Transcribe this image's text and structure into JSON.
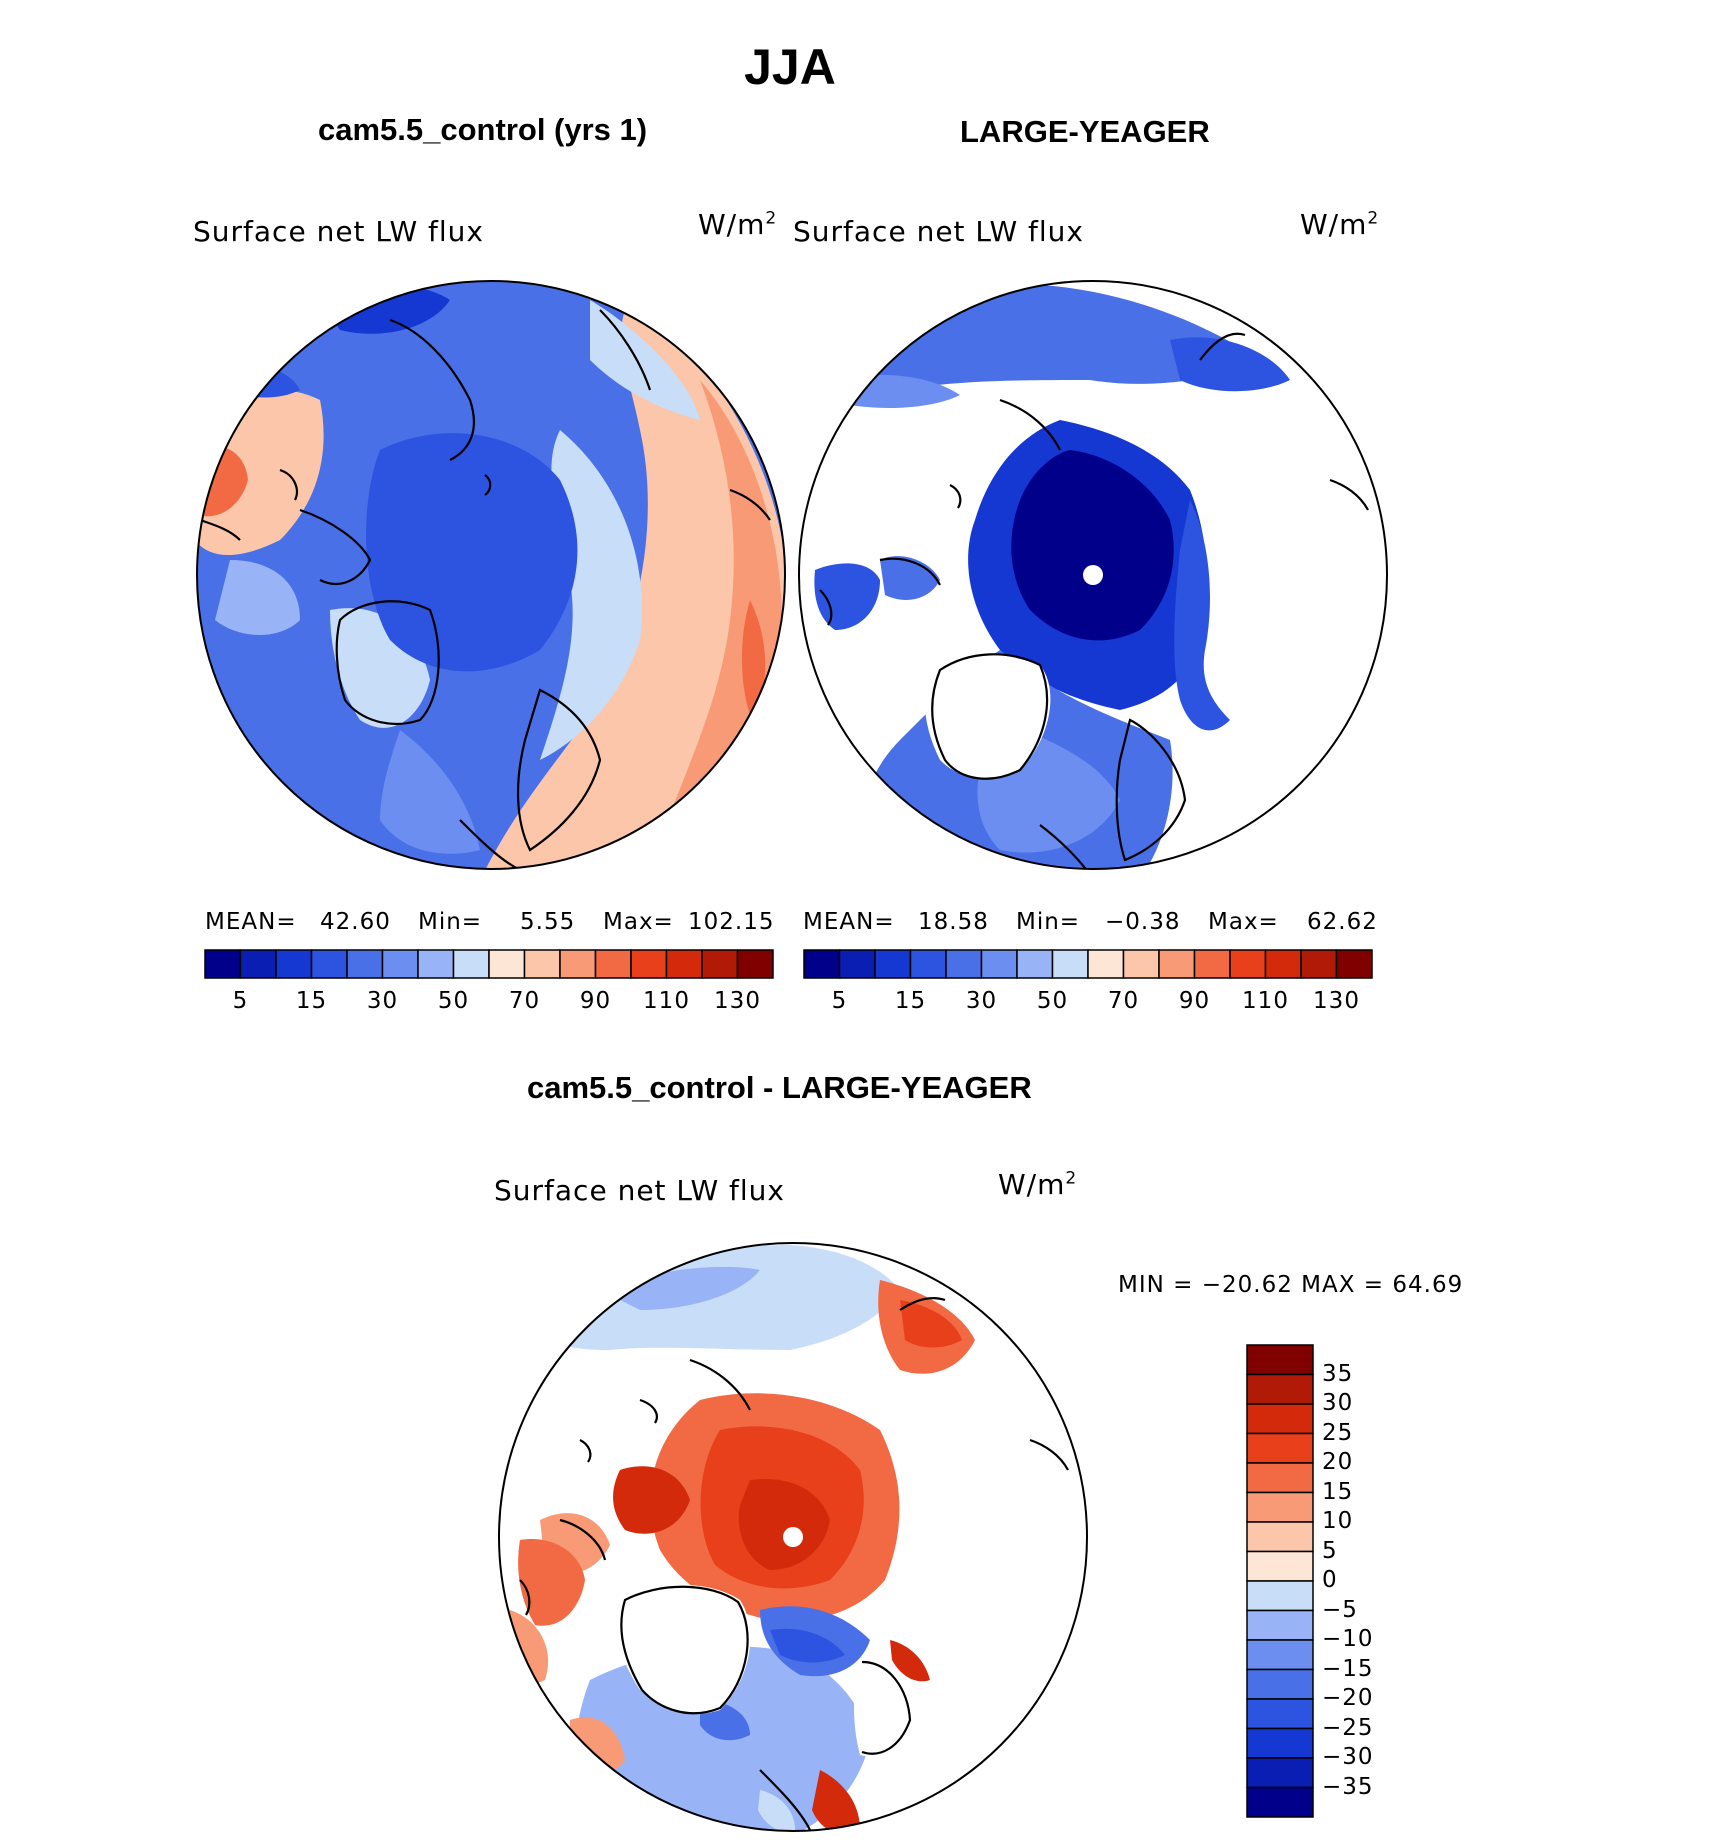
{
  "title": "JJA",
  "panels": [
    {
      "id": "control",
      "title": "cam5.5_control (yrs 1)",
      "variable": "Surface net LW flux",
      "units_base": "W/m",
      "units_exp": "2",
      "stats": {
        "mean_label": "MEAN=",
        "mean": "42.60",
        "min_label": "Min=",
        "min": "5.55",
        "max_label": "Max=",
        "max": "102.15"
      }
    },
    {
      "id": "obs",
      "title": "LARGE-YEAGER",
      "variable": "Surface net LW flux",
      "units_base": "W/m",
      "units_exp": "2",
      "stats": {
        "mean_label": "MEAN=",
        "mean": "18.58",
        "min_label": "Min=",
        "min": "−0.38",
        "max_label": "Max=",
        "max": "62.62"
      }
    },
    {
      "id": "diff",
      "title": "cam5.5_control - LARGE-YEAGER",
      "variable": "Surface net LW flux",
      "units_base": "W/m",
      "units_exp": "2",
      "minmax": "MIN = −20.62  MAX =   64.69"
    }
  ],
  "chart_data": [
    {
      "type": "heatmap",
      "projection": "north polar stereographic",
      "title": "cam5.5_control (yrs 1)",
      "variable": "Surface net LW flux",
      "units": "W/m2",
      "mean": 42.6,
      "min": 5.55,
      "max": 102.15,
      "colorbar_ticks": [
        "5",
        "15",
        "30",
        "50",
        "70",
        "90",
        "110",
        "130"
      ],
      "colorbar_levels": [
        0,
        5,
        10,
        15,
        20,
        30,
        40,
        50,
        60,
        70,
        80,
        90,
        100,
        110,
        120,
        130,
        140
      ],
      "colorbar_colors": [
        "#00008b",
        "#0a1eb4",
        "#1638d2",
        "#2c54e0",
        "#4a70e8",
        "#6c8ef0",
        "#98b4f6",
        "#c8def8",
        "#fde6d6",
        "#fbc6aa",
        "#f89a76",
        "#f26a44",
        "#e8401a",
        "#d42a0c",
        "#b01a06",
        "#800000"
      ]
    },
    {
      "type": "heatmap",
      "projection": "north polar stereographic",
      "title": "LARGE-YEAGER",
      "variable": "Surface net LW flux",
      "units": "W/m2",
      "mean": 18.58,
      "min": -0.38,
      "max": 62.62,
      "colorbar_ticks": [
        "5",
        "15",
        "30",
        "50",
        "70",
        "90",
        "110",
        "130"
      ],
      "colorbar_levels": [
        0,
        5,
        10,
        15,
        20,
        30,
        40,
        50,
        60,
        70,
        80,
        90,
        100,
        110,
        120,
        130,
        140
      ],
      "colorbar_colors": [
        "#00008b",
        "#0a1eb4",
        "#1638d2",
        "#2c54e0",
        "#4a70e8",
        "#6c8ef0",
        "#98b4f6",
        "#c8def8",
        "#fde6d6",
        "#fbc6aa",
        "#f89a76",
        "#f26a44",
        "#e8401a",
        "#d42a0c",
        "#b01a06",
        "#800000"
      ]
    },
    {
      "type": "heatmap",
      "projection": "north polar stereographic",
      "title": "cam5.5_control - LARGE-YEAGER",
      "variable": "Surface net LW flux",
      "units": "W/m2",
      "min": -20.62,
      "max": 64.69,
      "colorbar_ticks": [
        "35",
        "30",
        "25",
        "20",
        "15",
        "10",
        "5",
        "0",
        "−5",
        "−10",
        "−15",
        "−20",
        "−25",
        "−30",
        "−35"
      ],
      "colorbar_colors": [
        "#800000",
        "#b01a06",
        "#d42a0c",
        "#e8401a",
        "#f26a44",
        "#f89a76",
        "#fbc6aa",
        "#fde6d6",
        "#c8def8",
        "#98b4f6",
        "#6c8ef0",
        "#4a70e8",
        "#2c54e0",
        "#1638d2",
        "#0a1eb4",
        "#00008b"
      ]
    }
  ]
}
